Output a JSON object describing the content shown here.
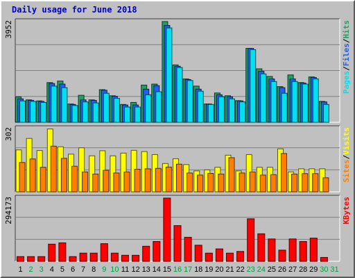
{
  "title": "Daily usage for June 2018",
  "colors": {
    "pages": "#00e0f0",
    "files": "#2060f0",
    "hits": "#20a060",
    "visits": "#ffff00",
    "sites": "#ff8000",
    "kbytes": "#ff0000",
    "weekend_day": "#00a040",
    "weekday_day": "#000000",
    "panel_bg": "#c0c0c0",
    "grid": "#808080"
  },
  "chart_data": [
    {
      "type": "bar",
      "panel": "hits-files-pages",
      "y_max_label": "3952",
      "ylim": [
        0,
        3952
      ],
      "right_labels": [
        "Pages",
        "/",
        "Files",
        "/",
        "Hits"
      ],
      "categories": [
        "1",
        "2",
        "3",
        "4",
        "5",
        "6",
        "7",
        "8",
        "9",
        "10",
        "11",
        "12",
        "13",
        "14",
        "15",
        "16",
        "17",
        "18",
        "19",
        "20",
        "21",
        "22",
        "23",
        "24",
        "25",
        "26",
        "27",
        "28",
        "29",
        "30"
      ],
      "series": [
        {
          "name": "Hits",
          "values": [
            1000,
            880,
            840,
            1560,
            1620,
            720,
            1060,
            880,
            1280,
            1040,
            700,
            780,
            1460,
            1500,
            3952,
            2250,
            1700,
            1420,
            720,
            1150,
            1040,
            850,
            2900,
            2100,
            1800,
            1400,
            1860,
            1560,
            1780,
            820
          ]
        },
        {
          "name": "Files",
          "values": [
            920,
            860,
            820,
            1520,
            1500,
            700,
            880,
            860,
            1260,
            1020,
            680,
            680,
            1300,
            1440,
            3800,
            2200,
            1680,
            1300,
            720,
            1080,
            1000,
            840,
            2900,
            2000,
            1700,
            1360,
            1700,
            1540,
            1760,
            800
          ]
        },
        {
          "name": "Pages",
          "values": [
            840,
            820,
            780,
            1420,
            1360,
            660,
            800,
            760,
            1140,
            940,
            600,
            600,
            1080,
            1200,
            3700,
            2150,
            1640,
            1220,
            700,
            1000,
            920,
            800,
            2850,
            1900,
            1600,
            1140,
            1600,
            1500,
            1700,
            700
          ]
        }
      ]
    },
    {
      "type": "bar",
      "panel": "visits-sites",
      "y_max_label": "302",
      "ylim": [
        0,
        302
      ],
      "right_labels": [
        "Sites",
        "/",
        "Visits"
      ],
      "categories": [
        "1",
        "2",
        "3",
        "4",
        "5",
        "6",
        "7",
        "8",
        "9",
        "10",
        "11",
        "12",
        "13",
        "14",
        "15",
        "16",
        "17",
        "18",
        "19",
        "20",
        "21",
        "22",
        "23",
        "24",
        "25",
        "26",
        "27",
        "28",
        "29",
        "30"
      ],
      "series": [
        {
          "name": "Visits",
          "values": [
            200,
            255,
            197,
            300,
            215,
            180,
            210,
            172,
            196,
            172,
            185,
            198,
            192,
            178,
            135,
            158,
            130,
            100,
            105,
            117,
            175,
            100,
            178,
            117,
            117,
            205,
            95,
            110,
            110,
            110
          ]
        },
        {
          "name": "Sites",
          "values": [
            140,
            157,
            117,
            218,
            160,
            122,
            95,
            85,
            103,
            90,
            95,
            108,
            110,
            112,
            118,
            132,
            90,
            80,
            88,
            85,
            163,
            90,
            95,
            80,
            82,
            183,
            85,
            87,
            87,
            67
          ]
        }
      ]
    },
    {
      "type": "bar",
      "panel": "kbytes",
      "y_max_label": "294173",
      "ylim": [
        0,
        294173
      ],
      "right_labels": [
        "KBytes"
      ],
      "categories": [
        "1",
        "2",
        "3",
        "4",
        "5",
        "6",
        "7",
        "8",
        "9",
        "10",
        "11",
        "12",
        "13",
        "14",
        "15",
        "16",
        "17",
        "18",
        "19",
        "20",
        "21",
        "22",
        "23",
        "24",
        "25",
        "26",
        "27",
        "28",
        "29",
        "30"
      ],
      "series": [
        {
          "name": "KBytes",
          "values": [
            22000,
            22000,
            22000,
            80000,
            86000,
            22000,
            38000,
            38000,
            82000,
            38000,
            28000,
            28000,
            70000,
            92000,
            294173,
            166000,
            112000,
            75000,
            38000,
            58000,
            38000,
            46000,
            198000,
            128000,
            104000,
            52000,
            104000,
            92000,
            108000,
            18000
          ]
        }
      ]
    }
  ],
  "x_axis": {
    "days": [
      "1",
      "2",
      "3",
      "4",
      "5",
      "6",
      "7",
      "8",
      "9",
      "10",
      "11",
      "12",
      "13",
      "14",
      "15",
      "16",
      "17",
      "18",
      "19",
      "20",
      "21",
      "22",
      "23",
      "24",
      "25",
      "26",
      "27",
      "28",
      "29",
      "30",
      "31"
    ],
    "weekend_days": [
      "2",
      "3",
      "9",
      "10",
      "16",
      "17",
      "23",
      "24",
      "30",
      "31"
    ]
  }
}
